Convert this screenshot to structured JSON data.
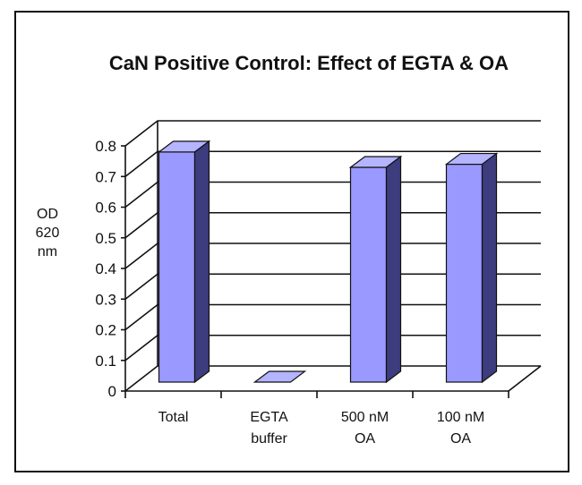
{
  "chart_data": {
    "type": "bar",
    "title": "CaN Positive Control:  Effect of EGTA & OA",
    "ylabel_lines": [
      "OD",
      "620",
      "nm"
    ],
    "categories": [
      [
        "Total"
      ],
      [
        "EGTA",
        "buffer"
      ],
      [
        "500 nM",
        "OA"
      ],
      [
        "100 nM",
        "OA"
      ]
    ],
    "values": [
      0.78,
      0.0,
      0.73,
      0.74
    ],
    "ylim": [
      0,
      0.8
    ],
    "yticks": [
      "0",
      "0.1",
      "0.2",
      "0.3",
      "0.4",
      "0.5",
      "0.6",
      "0.7",
      "0.8"
    ],
    "grid": true,
    "style": "3d-bar",
    "colors": {
      "bar_front": "#9999ff",
      "bar_top": "#b4b4ff",
      "bar_side": "#3c3c7e",
      "grid": "#111111"
    }
  }
}
